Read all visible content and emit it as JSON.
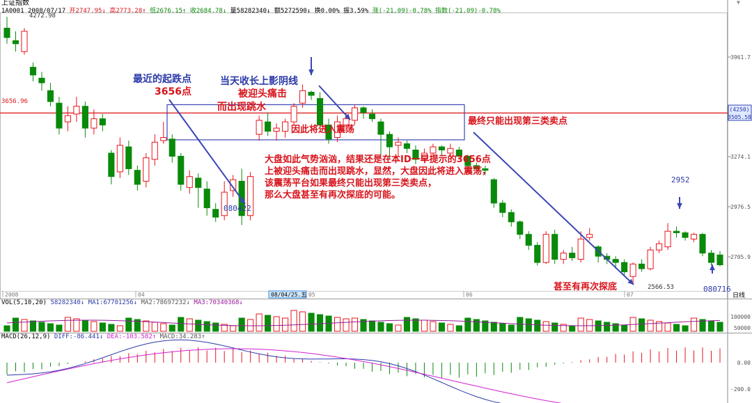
{
  "header": {
    "index_name": "上证指数",
    "code": "1A0001",
    "date": "2008/07/17",
    "open": "开2747.95↓",
    "high": "高2773.28↑",
    "low": "低2676.15↑",
    "close": "收2684.78↓",
    "volume": "量58282340↓",
    "amount": "额5272590↓",
    "turnover": "换0.00%",
    "amplitude": "振3.59%",
    "change": "涨(-21.09)-0.78%",
    "index_change": "指数(-21.09)-0.78%"
  },
  "price_labels": {
    "hi_mark": "4272.98",
    "h_line": "3656.96",
    "cur_box_top": "(4250)",
    "cur_box": "3505.58",
    "mark_080422": "080422",
    "mark_2952": "2952",
    "mark_2566": "2566.53",
    "mark_080716": "080716"
  },
  "axis": {
    "right_ticks": [
      "3961.7",
      "3274.1",
      "2976.5",
      "2705.9"
    ],
    "dates": [
      "2008",
      "04",
      "05",
      "06",
      "07"
    ],
    "cursor_date": "08/04/25.五",
    "period": "日线",
    "vol_ticks": [
      "100000",
      "50000"
    ],
    "macd_ticks": [
      "0.00",
      "-200.0"
    ]
  },
  "vol_header": {
    "name": "VOL(5,10,20)",
    "value": "58282340↓",
    "ma1": "MA1:67701256↓",
    "ma2": "MA2:78697232↓",
    "ma3": "MA3:70340368↓"
  },
  "macd_header": {
    "name": "MACD(26,12,9)",
    "diff": "DIFF:-86.441↓",
    "dea": "DEA:-103.582↑",
    "macd": "MACD:34.283↑"
  },
  "annotations": {
    "a1": "最近的起跌点",
    "a2": "3656点",
    "a3": "当天收长上影阴线",
    "a4": "被迎头痛击",
    "a5": "而出现跳水",
    "a6": "因此将进入震荡",
    "a7": "最终只能出现第三类卖点",
    "a8": [
      "大盘如此气势汹汹，结果还是在本ID一早提示的3656点",
      "上被迎头痛击而出现跳水，显然，大盘因此将进入震荡，",
      "该震荡平台如果最终只能出现第三类卖点，",
      "那么大盘甚至有再次探底的可能。"
    ],
    "a9": "甚至有再次探底"
  },
  "chart_data": {
    "type": "candlestick",
    "title": "上证指数",
    "period": "日线",
    "reference_line": 3656.96,
    "ylim": [
      2540,
      4300
    ],
    "candles": [
      [
        4200,
        4140,
        4272.98,
        4100
      ],
      [
        4120,
        4100,
        4180,
        4050
      ],
      [
        4050,
        4180,
        4200,
        4030
      ],
      [
        3950,
        3900,
        3980,
        3860
      ],
      [
        3880,
        3850,
        3920,
        3800
      ],
      [
        3800,
        3730,
        3850,
        3700
      ],
      [
        3720,
        3560,
        3760,
        3520
      ],
      [
        3600,
        3640,
        3700,
        3540
      ],
      [
        3650,
        3700,
        3760,
        3600
      ],
      [
        3700,
        3560,
        3730,
        3500
      ],
      [
        3560,
        3620,
        3680,
        3520
      ],
      [
        3620,
        3580,
        3650,
        3540
      ],
      [
        3400,
        3250,
        3420,
        3200
      ],
      [
        3280,
        3450,
        3500,
        3240
      ],
      [
        3440,
        3300,
        3480,
        3260
      ],
      [
        3290,
        3200,
        3320,
        3160
      ],
      [
        3220,
        3370,
        3400,
        3180
      ],
      [
        3360,
        3470,
        3520,
        3320
      ],
      [
        3480,
        3500,
        3600,
        3460
      ],
      [
        3490,
        3380,
        3520,
        3340
      ],
      [
        3380,
        3200,
        3400,
        3160
      ],
      [
        3180,
        3250,
        3290,
        3140
      ],
      [
        3240,
        3180,
        3270,
        3050
      ],
      [
        3170,
        3050,
        3220,
        3000
      ],
      [
        3040,
        2990,
        3080,
        2960
      ],
      [
        3000,
        3150,
        3220,
        2970
      ],
      [
        3160,
        3230,
        3260,
        3120
      ],
      [
        3220,
        3000,
        3300,
        2940
      ],
      [
        3000,
        3250,
        3280,
        2970
      ],
      [
        3520,
        3610,
        3640,
        3480
      ],
      [
        3600,
        3540,
        3660,
        3510
      ],
      [
        3540,
        3560,
        3590,
        3480
      ],
      [
        3540,
        3600,
        3620,
        3500
      ],
      [
        3600,
        3700,
        3720,
        3580
      ],
      [
        3720,
        3800,
        3840,
        3690
      ],
      [
        3790,
        3770,
        3800,
        3740
      ],
      [
        3750,
        3580,
        3790,
        3560
      ],
      [
        3580,
        3490,
        3620,
        3460
      ],
      [
        3500,
        3600,
        3640,
        3470
      ],
      [
        3580,
        3620,
        3660,
        3540
      ],
      [
        3610,
        3690,
        3710,
        3580
      ],
      [
        3690,
        3660,
        3700,
        3620
      ],
      [
        3650,
        3620,
        3680,
        3600
      ],
      [
        3600,
        3520,
        3620,
        3380
      ],
      [
        3520,
        3440,
        3540,
        3360
      ],
      [
        3450,
        3470,
        3500,
        3380
      ],
      [
        3460,
        3430,
        3480,
        3400
      ],
      [
        3420,
        3360,
        3450,
        3330
      ],
      [
        3360,
        3400,
        3430,
        3340
      ],
      [
        3400,
        3440,
        3460,
        3380
      ],
      [
        3440,
        3420,
        3450,
        3380
      ],
      [
        3400,
        3430,
        3460,
        3380
      ],
      [
        3420,
        3380,
        3440,
        3360
      ],
      [
        3380,
        3320,
        3390,
        3280
      ],
      [
        3320,
        3300,
        3340,
        3270
      ],
      [
        3300,
        3290,
        3320,
        3260
      ],
      [
        3230,
        3080,
        3240,
        3050
      ],
      [
        3080,
        3020,
        3100,
        2990
      ],
      [
        3020,
        2960,
        3040,
        2930
      ],
      [
        2960,
        2880,
        2970,
        2850
      ],
      [
        2880,
        2810,
        2900,
        2780
      ],
      [
        2810,
        2700,
        2830,
        2680
      ],
      [
        2700,
        2880,
        2900,
        2690
      ],
      [
        2880,
        2720,
        2910,
        2690
      ],
      [
        2720,
        2760,
        2780,
        2690
      ],
      [
        2760,
        2730,
        2800,
        2710
      ],
      [
        2720,
        2850,
        2900,
        2700
      ],
      [
        2860,
        2880,
        2920,
        2840
      ],
      [
        2800,
        2740,
        2810,
        2700
      ],
      [
        2740,
        2720,
        2760,
        2690
      ],
      [
        2720,
        2700,
        2740,
        2660
      ],
      [
        2700,
        2640,
        2720,
        2610
      ],
      [
        2610,
        2690,
        2700,
        2566.53
      ],
      [
        2690,
        2660,
        2720,
        2640
      ],
      [
        2660,
        2780,
        2800,
        2650
      ],
      [
        2780,
        2820,
        2840,
        2760
      ],
      [
        2800,
        2900,
        2952,
        2780
      ],
      [
        2900,
        2890,
        2930,
        2860
      ],
      [
        2890,
        2860,
        2900,
        2840
      ],
      [
        2850,
        2880,
        2890,
        2830
      ],
      [
        2880,
        2760,
        2890,
        2740
      ],
      [
        2760,
        2700,
        2780,
        2680
      ],
      [
        2747.95,
        2684.78,
        2773.28,
        2676.15
      ]
    ],
    "macd_header_values": {
      "diff": -86.441,
      "dea": -103.582,
      "macd": 34.283
    }
  }
}
